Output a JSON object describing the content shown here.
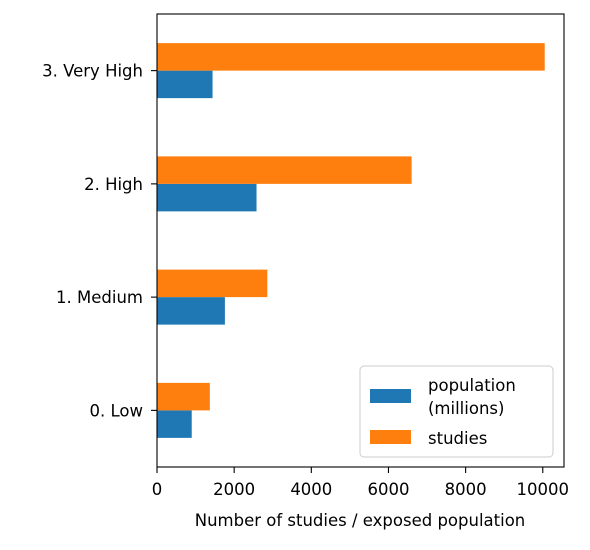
{
  "chart_data": {
    "type": "bar",
    "orientation": "horizontal",
    "categories": [
      "0. Low",
      "1. Medium",
      "2. High",
      "3. Very High"
    ],
    "series": [
      {
        "name": "population\n(millions)",
        "values": [
          900,
          1760,
          2580,
          1440
        ],
        "color": "#1f77b4"
      },
      {
        "name": "studies",
        "values": [
          1370,
          2860,
          6600,
          10050
        ],
        "color": "#ff7f0e"
      }
    ],
    "xlabel": "Number of studies / exposed population",
    "ylabel": "",
    "xlim": [
      0,
      10550
    ],
    "xticks": [
      0,
      2000,
      4000,
      6000,
      8000,
      10000
    ],
    "grid": false,
    "legend_position": "bottom-right"
  }
}
